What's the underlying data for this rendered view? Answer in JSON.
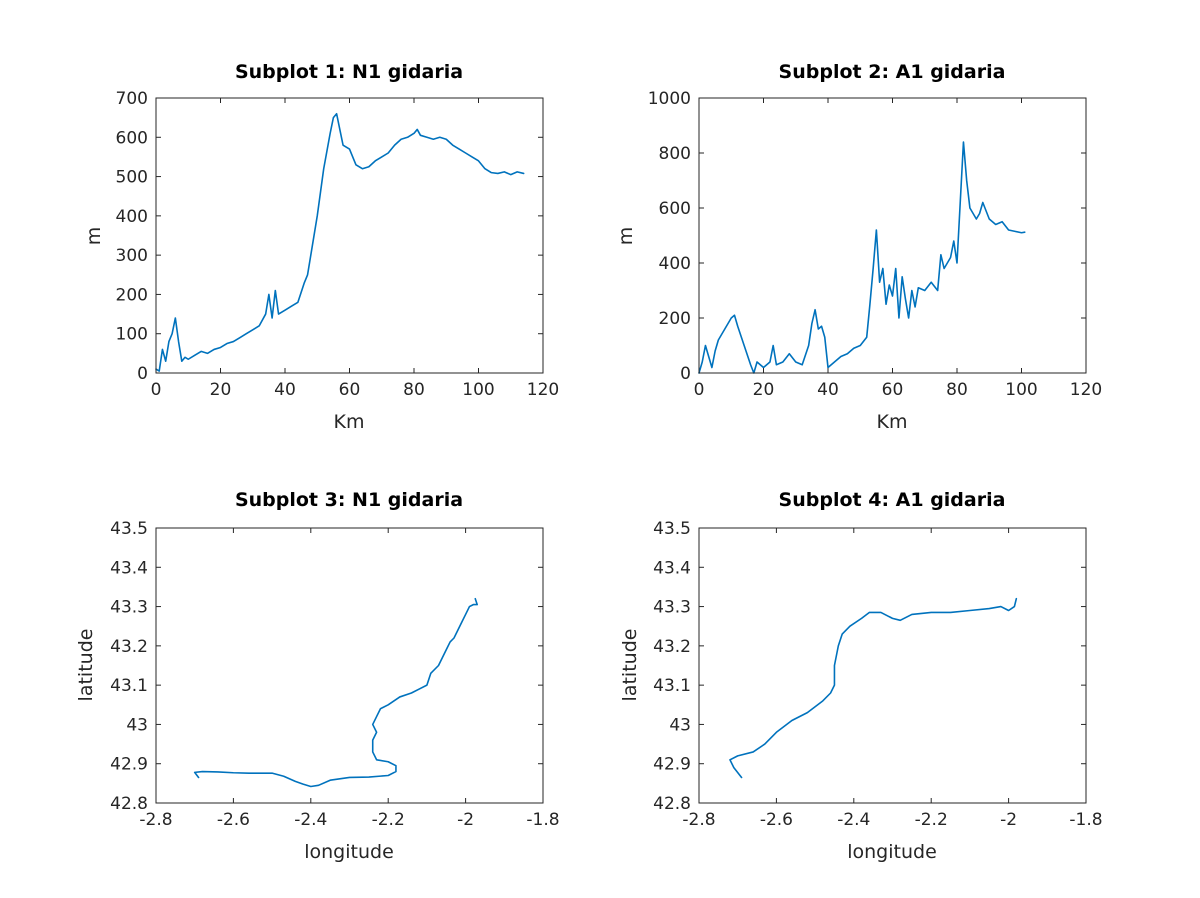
{
  "chart_data": [
    {
      "type": "line",
      "title": "Subplot 1: N1 gidaria",
      "xlabel": "Km",
      "ylabel": "m",
      "xlim": [
        0,
        120
      ],
      "ylim": [
        0,
        700
      ],
      "xticks": [
        "0",
        "20",
        "40",
        "60",
        "80",
        "100",
        "120"
      ],
      "yticks": [
        "0",
        "100",
        "200",
        "300",
        "400",
        "500",
        "600",
        "700"
      ],
      "grid": false,
      "color": "#0072BD",
      "series": [
        {
          "x": [
            0,
            1,
            2,
            3,
            4,
            5,
            6,
            7,
            8,
            9,
            10,
            12,
            14,
            16,
            18,
            20,
            22,
            24,
            26,
            28,
            30,
            32,
            34,
            35,
            36,
            37,
            38,
            40,
            42,
            44,
            46,
            47,
            48,
            50,
            52,
            54,
            55,
            56,
            57,
            58,
            60,
            62,
            64,
            66,
            68,
            70,
            72,
            74,
            76,
            78,
            80,
            81,
            82,
            84,
            86,
            88,
            90,
            92,
            94,
            96,
            98,
            100,
            102,
            104,
            106,
            108,
            110,
            112,
            114
          ],
          "y": [
            10,
            5,
            60,
            30,
            80,
            100,
            140,
            80,
            30,
            40,
            35,
            45,
            55,
            50,
            60,
            65,
            75,
            80,
            90,
            100,
            110,
            120,
            150,
            200,
            140,
            210,
            150,
            160,
            170,
            180,
            230,
            250,
            300,
            400,
            520,
            610,
            650,
            660,
            620,
            580,
            570,
            530,
            520,
            525,
            540,
            550,
            560,
            580,
            595,
            600,
            610,
            620,
            605,
            600,
            595,
            600,
            595,
            580,
            570,
            560,
            550,
            540,
            520,
            510,
            508,
            512,
            505,
            512,
            508
          ]
        }
      ]
    },
    {
      "type": "line",
      "title": "Subplot 2: A1 gidaria",
      "xlabel": "Km",
      "ylabel": "m",
      "xlim": [
        0,
        120
      ],
      "ylim": [
        0,
        1000
      ],
      "xticks": [
        "0",
        "20",
        "40",
        "60",
        "80",
        "100",
        "120"
      ],
      "yticks": [
        "0",
        "200",
        "400",
        "600",
        "800",
        "1000"
      ],
      "grid": false,
      "color": "#0072BD",
      "series": [
        {
          "x": [
            0,
            1,
            2,
            3,
            4,
            5,
            6,
            8,
            10,
            11,
            12,
            14,
            16,
            17,
            18,
            20,
            22,
            23,
            24,
            26,
            28,
            30,
            32,
            34,
            35,
            36,
            37,
            38,
            39,
            40,
            42,
            44,
            46,
            48,
            50,
            52,
            53,
            54,
            55,
            56,
            57,
            58,
            59,
            60,
            61,
            62,
            63,
            64,
            65,
            66,
            67,
            68,
            70,
            72,
            74,
            75,
            76,
            78,
            79,
            80,
            81,
            82,
            83,
            84,
            86,
            87,
            88,
            90,
            92,
            94,
            96,
            98,
            100,
            101
          ],
          "y": [
            0,
            40,
            100,
            60,
            20,
            80,
            120,
            160,
            200,
            210,
            170,
            100,
            30,
            0,
            40,
            20,
            40,
            100,
            30,
            40,
            70,
            40,
            30,
            100,
            180,
            230,
            160,
            170,
            130,
            20,
            40,
            60,
            70,
            90,
            100,
            130,
            250,
            380,
            520,
            330,
            380,
            250,
            320,
            280,
            380,
            200,
            350,
            270,
            200,
            300,
            240,
            310,
            300,
            330,
            300,
            430,
            380,
            420,
            480,
            400,
            620,
            840,
            700,
            600,
            560,
            580,
            620,
            560,
            540,
            550,
            520,
            515,
            510,
            512
          ]
        }
      ]
    },
    {
      "type": "line",
      "title": "Subplot 3: N1 gidaria",
      "xlabel": "longitude",
      "ylabel": "latitude",
      "xlim": [
        -2.8,
        -1.8
      ],
      "ylim": [
        42.8,
        43.5
      ],
      "xticks": [
        "-2.8",
        "-2.6",
        "-2.4",
        "-2.2",
        "-2",
        "-1.8"
      ],
      "yticks": [
        "42.8",
        "42.9",
        "43",
        "43.1",
        "43.2",
        "43.3",
        "43.4",
        "43.5"
      ],
      "grid": false,
      "color": "#0072BD",
      "series": [
        {
          "x": [
            -2.69,
            -2.7,
            -2.68,
            -2.64,
            -2.6,
            -2.56,
            -2.5,
            -2.47,
            -2.44,
            -2.42,
            -2.4,
            -2.38,
            -2.35,
            -2.3,
            -2.25,
            -2.2,
            -2.18,
            -2.18,
            -2.2,
            -2.23,
            -2.24,
            -2.24,
            -2.23,
            -2.24,
            -2.23,
            -2.22,
            -2.2,
            -2.17,
            -2.14,
            -2.12,
            -2.1,
            -2.09,
            -2.07,
            -2.06,
            -2.05,
            -2.04,
            -2.03,
            -2.02,
            -2.01,
            -2.0,
            -1.99,
            -1.98,
            -1.97,
            -1.975
          ],
          "y": [
            42.865,
            42.878,
            42.88,
            42.879,
            42.877,
            42.876,
            42.876,
            42.868,
            42.855,
            42.848,
            42.842,
            42.845,
            42.858,
            42.865,
            42.866,
            42.87,
            42.88,
            42.895,
            42.905,
            42.91,
            42.93,
            42.96,
            42.98,
            43.0,
            43.02,
            43.04,
            43.05,
            43.07,
            43.08,
            43.09,
            43.1,
            43.13,
            43.15,
            43.17,
            43.19,
            43.21,
            43.22,
            43.24,
            43.26,
            43.28,
            43.3,
            43.305,
            43.305,
            43.32
          ]
        }
      ]
    },
    {
      "type": "line",
      "title": "Subplot 4: A1 gidaria",
      "xlabel": "longitude",
      "ylabel": "latitude",
      "xlim": [
        -2.8,
        -1.8
      ],
      "ylim": [
        42.8,
        43.5
      ],
      "xticks": [
        "-2.8",
        "-2.6",
        "-2.4",
        "-2.2",
        "-2",
        "-1.8"
      ],
      "yticks": [
        "42.8",
        "42.9",
        "43",
        "43.1",
        "43.2",
        "43.3",
        "43.4",
        "43.5"
      ],
      "grid": false,
      "color": "#0072BD",
      "series": [
        {
          "x": [
            -2.69,
            -2.71,
            -2.72,
            -2.7,
            -2.66,
            -2.63,
            -2.6,
            -2.56,
            -2.52,
            -2.48,
            -2.46,
            -2.45,
            -2.45,
            -2.44,
            -2.43,
            -2.41,
            -2.38,
            -2.36,
            -2.33,
            -2.3,
            -2.28,
            -2.25,
            -2.2,
            -2.15,
            -2.1,
            -2.05,
            -2.02,
            -2.0,
            -1.985,
            -1.98
          ],
          "y": [
            42.865,
            42.89,
            42.91,
            42.92,
            42.93,
            42.95,
            42.98,
            43.01,
            43.03,
            43.06,
            43.08,
            43.1,
            43.15,
            43.2,
            43.23,
            43.25,
            43.27,
            43.285,
            43.285,
            43.27,
            43.265,
            43.28,
            43.285,
            43.285,
            43.29,
            43.295,
            43.3,
            43.29,
            43.3,
            43.32
          ]
        }
      ]
    }
  ]
}
